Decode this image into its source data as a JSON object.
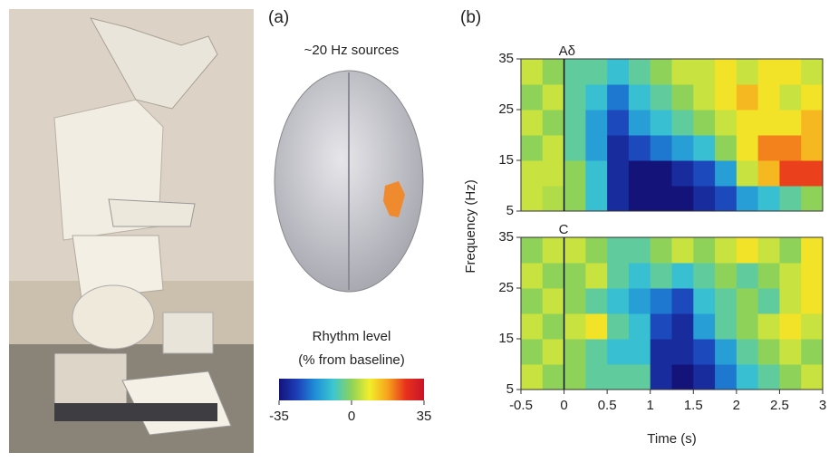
{
  "panel_a": {
    "label": "(a)",
    "title": "~20 Hz sources",
    "colorbar_title": [
      "Rhythm level",
      "(% from baseline)"
    ],
    "colorbar": {
      "lim": [
        -35,
        35
      ],
      "ticks": [
        -35,
        0,
        35
      ],
      "colors": [
        "#14137a",
        "#1c3fb8",
        "#1f8fd8",
        "#3cc7d0",
        "#8fd25a",
        "#f2ee2a",
        "#f7a21c",
        "#e8311c",
        "#c81428"
      ]
    }
  },
  "panel_b_label": "(b)",
  "y_axis_label": "Frequency (Hz)",
  "chart_data": [
    {
      "type": "heatmap",
      "title": "Aδ",
      "x_bins": [
        -0.5,
        -0.25,
        0,
        0.25,
        0.5,
        0.75,
        1,
        1.25,
        1.5,
        1.75,
        2,
        2.25,
        2.5,
        2.75,
        3
      ],
      "y_bins": [
        5,
        10,
        15,
        20,
        25,
        30,
        35
      ],
      "values": [
        [
          5,
          3,
          0,
          -10,
          -30,
          -35,
          -35,
          -35,
          -30,
          -25,
          -15,
          -10,
          -5,
          0
        ],
        [
          5,
          5,
          0,
          -10,
          -30,
          -35,
          -35,
          -30,
          -25,
          -15,
          5,
          15,
          25,
          25
        ],
        [
          0,
          5,
          -5,
          -15,
          -30,
          -25,
          -20,
          -15,
          -10,
          0,
          10,
          20,
          20,
          15
        ],
        [
          5,
          0,
          -5,
          -15,
          -25,
          -15,
          -10,
          -5,
          0,
          5,
          10,
          10,
          10,
          15
        ],
        [
          0,
          5,
          -5,
          -10,
          -20,
          -10,
          -5,
          0,
          5,
          10,
          15,
          10,
          5,
          10
        ],
        [
          5,
          0,
          -5,
          -5,
          -10,
          -5,
          0,
          5,
          5,
          10,
          5,
          10,
          10,
          5
        ]
      ],
      "xlim": [
        -0.5,
        3
      ],
      "ylim": [
        5,
        35
      ],
      "yticks": [
        5,
        15,
        25,
        35
      ]
    },
    {
      "type": "heatmap",
      "title": "C",
      "x_bins": [
        -0.5,
        -0.25,
        0,
        0.25,
        0.5,
        0.75,
        1,
        1.25,
        1.5,
        1.75,
        2,
        2.25,
        2.5,
        2.75,
        3
      ],
      "y_bins": [
        5,
        10,
        15,
        20,
        25,
        30,
        35
      ],
      "values": [
        [
          5,
          0,
          0,
          -5,
          -5,
          -5,
          -30,
          -35,
          -30,
          -20,
          -10,
          -5,
          0,
          5
        ],
        [
          0,
          5,
          0,
          -5,
          -10,
          -10,
          -30,
          -30,
          -25,
          -15,
          -5,
          0,
          5,
          0
        ],
        [
          5,
          0,
          5,
          10,
          -5,
          -10,
          -25,
          -30,
          -15,
          -5,
          0,
          5,
          10,
          5
        ],
        [
          0,
          5,
          0,
          -5,
          -10,
          -15,
          -20,
          -25,
          -10,
          -5,
          0,
          -5,
          5,
          10
        ],
        [
          5,
          0,
          0,
          5,
          -5,
          -10,
          -5,
          -10,
          -5,
          0,
          -5,
          0,
          5,
          10
        ],
        [
          0,
          5,
          5,
          0,
          -5,
          -5,
          0,
          5,
          0,
          5,
          10,
          5,
          0,
          10
        ]
      ],
      "xlim": [
        -0.5,
        3
      ],
      "ylim": [
        5,
        35
      ],
      "yticks": [
        5,
        15,
        25,
        35
      ],
      "xticks": [
        -0.5,
        0,
        0.5,
        1,
        1.5,
        2,
        2.5,
        3
      ],
      "xlabel": "Time (s)"
    }
  ]
}
